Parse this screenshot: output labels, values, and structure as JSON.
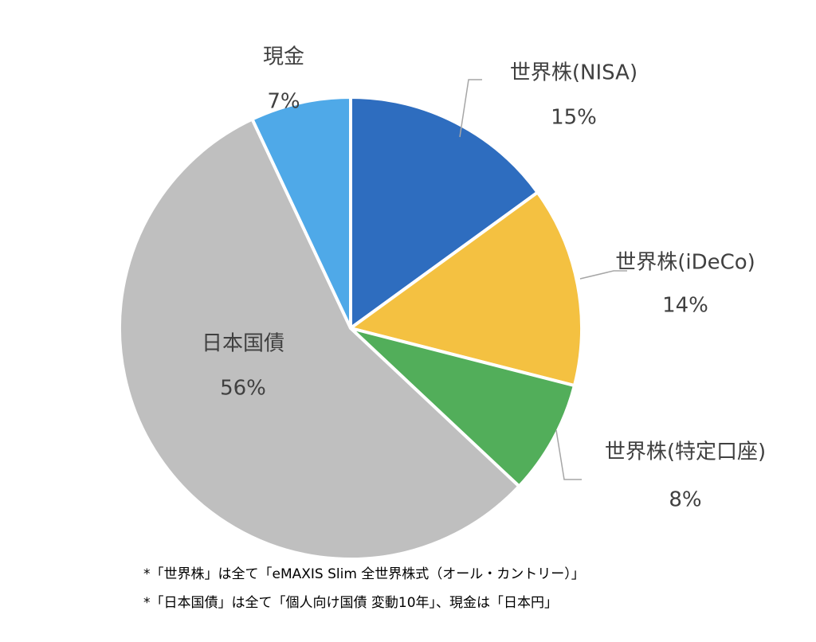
{
  "chart_data": {
    "type": "pie",
    "title": "",
    "slices": [
      {
        "label": "世界株(NISA)",
        "value": 15,
        "value_label": "15%",
        "color": "#2E6DBF"
      },
      {
        "label": "世界株(iDeCo)",
        "value": 14,
        "value_label": "14%",
        "color": "#F4C141"
      },
      {
        "label": "世界株(特定口座)",
        "value": 8,
        "value_label": "8%",
        "color": "#52AE5A"
      },
      {
        "label": "日本国債",
        "value": 56,
        "value_label": "56%",
        "color": "#BFBFBF"
      },
      {
        "label": "現金",
        "value": 7,
        "value_label": "7%",
        "color": "#4FA9E8"
      }
    ],
    "leader_line_color": "#A6A6A6"
  },
  "footnotes": [
    "*「世界株」は全て「eMAXIS Slim 全世界株式（オール・カントリー）」",
    "*「日本国債」は全て「個人向け国債 変動10年」、現金は「日本円」"
  ]
}
